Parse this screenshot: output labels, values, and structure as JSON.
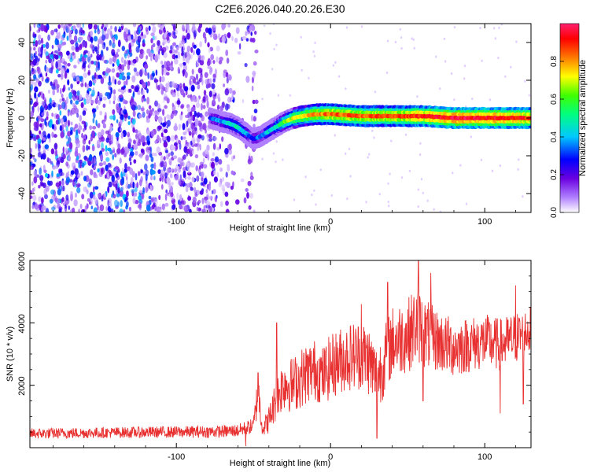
{
  "title": "C2E6.2026.040.20.26.E30",
  "chart_data": [
    {
      "type": "heatmap",
      "title": "C2E6.2026.040.20.26.E30",
      "xlabel": "Height of straight line (km)",
      "ylabel": "Frequency (Hz)",
      "xlim": [
        -195,
        130
      ],
      "ylim": [
        -50,
        50
      ],
      "x_ticks": [
        -100,
        0,
        100
      ],
      "x_tick_labels": [
        "-100",
        "0",
        "100"
      ],
      "y_ticks": [
        -40,
        -20,
        0,
        20,
        40
      ],
      "y_tick_labels": [
        "-40",
        "-20",
        "0",
        "20",
        "40"
      ],
      "colorbar": {
        "label": "Normalized spectral amplitude",
        "range": [
          0,
          1
        ],
        "ticks": [
          0.0,
          0.2,
          0.4,
          0.6,
          0.8
        ],
        "tick_labels": [
          "0.0",
          "0.2",
          "0.4",
          "0.6",
          "0.8"
        ],
        "colormap": [
          "#ffffff",
          "#7a00e0",
          "#0000ff",
          "#00e0ff",
          "#00ff40",
          "#ffff00",
          "#ff0000",
          "#ff2080"
        ]
      },
      "ridge": {
        "x": [
          -78,
          -70,
          -65,
          -60,
          -55,
          -52,
          -50,
          -46,
          -42,
          -38,
          -34,
          -30,
          -24,
          -18,
          -10,
          0,
          20,
          40,
          60,
          80,
          100,
          130
        ],
        "frequency": [
          0,
          -2,
          -3,
          -5,
          -8,
          -10,
          -11,
          -10,
          -8,
          -6,
          -4,
          -2,
          0,
          1,
          2,
          2,
          1,
          1,
          1,
          0,
          0,
          0
        ],
        "amplitude": [
          0.3,
          0.4,
          0.45,
          0.5,
          0.4,
          0.35,
          0.3,
          0.35,
          0.4,
          0.45,
          0.5,
          0.6,
          0.7,
          0.75,
          0.8,
          0.85,
          0.85,
          0.85,
          0.9,
          0.95,
          0.95,
          0.9
        ]
      },
      "noise_region": {
        "x_range": [
          -195,
          -48
        ],
        "amplitude_range": [
          0.05,
          0.4
        ]
      }
    },
    {
      "type": "line",
      "xlabel": "Height of straight line (km)",
      "ylabel": "SNR (10 * v/v)",
      "xlim": [
        -195,
        130
      ],
      "ylim": [
        0,
        6000
      ],
      "x_ticks": [
        -100,
        0,
        100
      ],
      "x_tick_labels": [
        "-100",
        "0",
        "100"
      ],
      "y_ticks": [
        2000,
        4000,
        6000
      ],
      "y_tick_labels": [
        "2000",
        "4000",
        "6000"
      ],
      "series": [
        {
          "name": "SNR",
          "color": "#e83030",
          "x": [
            -195,
            -150,
            -100,
            -70,
            -60,
            -50,
            -47,
            -44,
            -40,
            -35,
            -30,
            -25,
            -20,
            -15,
            -10,
            -5,
            0,
            10,
            20,
            25,
            30,
            40,
            50,
            57,
            60,
            70,
            80,
            90,
            100,
            110,
            120,
            130
          ],
          "mean": [
            450,
            480,
            500,
            520,
            550,
            700,
            1800,
            600,
            900,
            1600,
            2100,
            2000,
            2200,
            2400,
            2500,
            2300,
            2600,
            2900,
            3000,
            2800,
            2200,
            3400,
            3600,
            4000,
            3700,
            3400,
            3200,
            3300,
            3400,
            3300,
            3500,
            3800
          ],
          "spread": [
            350,
            350,
            380,
            400,
            420,
            500,
            1500,
            500,
            900,
            1400,
            1800,
            1800,
            1900,
            2000,
            2000,
            1900,
            2100,
            2200,
            2300,
            2300,
            2200,
            2300,
            2400,
            2600,
            2300,
            2000,
            1900,
            1800,
            1800,
            1700,
            1700,
            1500
          ],
          "peaks": [
            {
              "x": -47,
              "y": 2400
            },
            {
              "x": -35,
              "y": 4000
            },
            {
              "x": 20,
              "y": 4600
            },
            {
              "x": 37,
              "y": 5300
            },
            {
              "x": 57,
              "y": 6000
            },
            {
              "x": 65,
              "y": 5600
            },
            {
              "x": 120,
              "y": 5200
            }
          ],
          "troughs": [
            {
              "x": -55,
              "y": 50
            },
            {
              "x": 30,
              "y": 300
            },
            {
              "x": 60,
              "y": 1500
            },
            {
              "x": 110,
              "y": 1100
            },
            {
              "x": 125,
              "y": 1400
            }
          ]
        }
      ]
    }
  ]
}
